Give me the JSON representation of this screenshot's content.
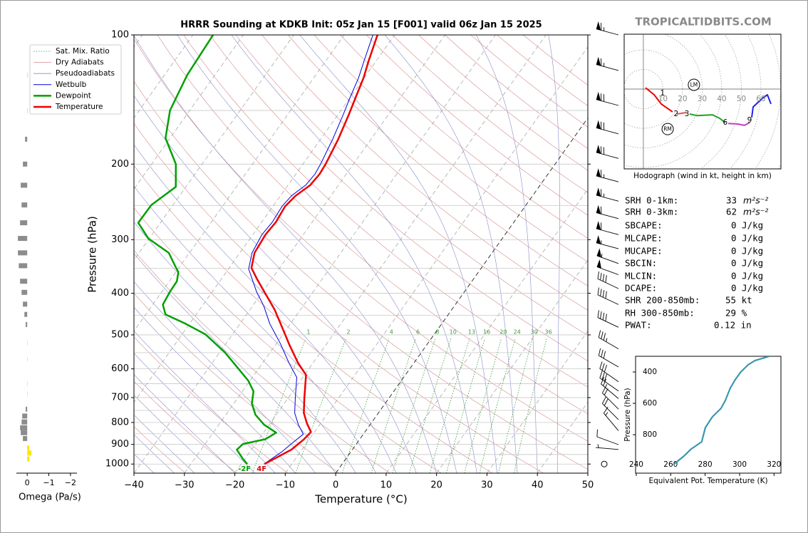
{
  "chart_data": [
    {
      "type": "skewt",
      "title": "HRRR Sounding at KDKB Init: 05z Jan 15 [F001] valid 06z Jan 15 2025",
      "xlabel": "Temperature (°C)",
      "ylabel": "Pressure (hPa)",
      "xlim": [
        -40,
        50
      ],
      "xticks": [
        {
          "value": -40,
          "label": "−40"
        },
        {
          "value": -30,
          "label": "−30"
        },
        {
          "value": -20,
          "label": "−20"
        },
        {
          "value": -10,
          "label": "−10"
        },
        0,
        10,
        20,
        30,
        40,
        50
      ],
      "ylim": [
        1050,
        100
      ],
      "yticks": [
        100,
        200,
        300,
        400,
        500,
        600,
        700,
        800,
        900,
        1000
      ],
      "log_y": true,
      "legend_position": "upper left",
      "background": [
        {
          "name": "Sat. Mix. Ratio",
          "color": "#3c9c3c",
          "values": [
            1,
            2,
            4,
            6,
            8,
            10,
            13,
            16,
            20,
            24,
            30,
            36
          ]
        },
        {
          "name": "Dry Adiabats",
          "color": "#d48a8a"
        },
        {
          "name": "Pseudoadiabats",
          "color": "#8a8ac8"
        }
      ],
      "series": [
        {
          "name": "Wetbulb",
          "color": "#0000dd",
          "line_width": 1,
          "pressure": [
            1000,
            937,
            892,
            852,
            810,
            760,
            704,
            628,
            581,
            524,
            471,
            428,
            397,
            351,
            322,
            292,
            273,
            251,
            237,
            224,
            211,
            200,
            175,
            153,
            139,
            126,
            115,
            100
          ],
          "values": [
            -15.5,
            -13.7,
            -12.8,
            -11.9,
            -14.2,
            -16.6,
            -18.5,
            -21.2,
            -24.8,
            -29.2,
            -34.1,
            -37.8,
            -41.2,
            -46.0,
            -47.6,
            -48.2,
            -47.9,
            -48.2,
            -47.8,
            -46.5,
            -46.2,
            -46.5,
            -47.6,
            -49.0,
            -50.1,
            -51.1,
            -52.4,
            -54.3
          ]
        },
        {
          "name": "Dewpoint",
          "color": "#00a000",
          "line_width": 2.5,
          "surface_label": "-2F",
          "pressure": [
            1000,
            973,
            926,
            898,
            875,
            845,
            810,
            768,
            723,
            677,
            640,
            588,
            549,
            499,
            471,
            448,
            425,
            397,
            375,
            357,
            347,
            322,
            298,
            274,
            249,
            226,
            200,
            174,
            150,
            124,
            100
          ],
          "values": [
            -18.8,
            -20.4,
            -22.9,
            -22.5,
            -18.7,
            -17.5,
            -21.0,
            -24.1,
            -26.4,
            -27.8,
            -30.3,
            -35.1,
            -39.0,
            -45.3,
            -50.8,
            -56.1,
            -58.0,
            -58.4,
            -58.5,
            -59.5,
            -60.8,
            -64.1,
            -70.2,
            -74.4,
            -74.3,
            -72.0,
            -75.2,
            -80.9,
            -83.9,
            -85.5,
            -86.0
          ]
        },
        {
          "name": "Temperature",
          "color": "#ee0000",
          "line_width": 2.5,
          "surface_label": "4F",
          "pressure": [
            1000,
            926,
            878,
            842,
            804,
            760,
            704,
            620,
            581,
            528,
            490,
            437,
            400,
            370,
            349,
            322,
            292,
            273,
            251,
            237,
            224,
            211,
            200,
            175,
            153,
            139,
            126,
            115,
            100
          ],
          "values": [
            -15.4,
            -12.1,
            -11.1,
            -10.7,
            -12.7,
            -14.8,
            -16.7,
            -19.7,
            -23.0,
            -27.2,
            -30.3,
            -35.1,
            -39.3,
            -43.0,
            -45.6,
            -47.1,
            -47.5,
            -47.2,
            -47.6,
            -47.0,
            -45.6,
            -45.3,
            -45.5,
            -46.5,
            -47.9,
            -49.0,
            -50.1,
            -51.5,
            -53.4
          ]
        }
      ],
      "winds": {
        "pressure": [
          100,
          121,
          146,
          170,
          194,
          220,
          244,
          268,
          292,
          315,
          341,
          362,
          390,
          425,
          480,
          539,
          594,
          643,
          676,
          704,
          745,
          788,
          836,
          901,
          925,
          1000
        ],
        "speed": [
          65,
          65,
          70,
          70,
          70,
          65,
          65,
          60,
          60,
          55,
          55,
          50,
          40,
          40,
          40,
          35,
          30,
          30,
          30,
          25,
          20,
          20,
          15,
          10,
          5,
          0
        ],
        "direction": [
          285,
          285,
          285,
          285,
          285,
          285,
          285,
          285,
          285,
          285,
          290,
          290,
          295,
          295,
          295,
          300,
          300,
          305,
          305,
          310,
          315,
          315,
          320,
          290,
          275,
          0
        ]
      }
    },
    {
      "type": "hbar",
      "xlabel": "Omega (Pa/s)",
      "xlim": [
        0.5,
        -2.3
      ],
      "xticks": [
        0,
        {
          "value": -1,
          "label": "−1"
        },
        {
          "value": -2,
          "label": "−2"
        }
      ],
      "ylim": [
        1050,
        100
      ],
      "log_y": true,
      "pos_color": "#8c8c8c",
      "neg_color": "#ffe600",
      "pressure": [
        124,
        150,
        175,
        200,
        224,
        249,
        274,
        298,
        322,
        345,
        375,
        398,
        424,
        448,
        473,
        523,
        570,
        650,
        687,
        745,
        773,
        798,
        823,
        845,
        872,
        918,
        943,
        973
      ],
      "values": [
        -0.03,
        -0.03,
        0.1,
        0.2,
        0.3,
        0.26,
        0.33,
        0.43,
        0.43,
        0.39,
        0.33,
        0.26,
        0.2,
        0.13,
        0.07,
        -0.02,
        -0.02,
        -0.02,
        -0.02,
        0.07,
        0.23,
        0.26,
        0.33,
        0.3,
        0.2,
        -0.1,
        -0.2,
        -0.1
      ]
    },
    {
      "type": "hodograph",
      "caption": "Hodograph (wind in kt, height in km)",
      "xlim": [
        -9.8,
        70.2
      ],
      "ylim": [
        -40.7,
        28
      ],
      "rings": [
        10,
        20,
        30,
        40,
        50,
        60
      ],
      "segments": [
        {
          "color": "#ee0000",
          "u": [
            1.1,
            5.5,
            9.1,
            14.9
          ],
          "v": [
            0.7,
            -2.9,
            -7.6,
            -11.6
          ]
        },
        {
          "color": "#e85050",
          "u": [
            17.1,
            21.8
          ],
          "v": [
            -12.7,
            -12.0
          ]
        },
        {
          "color": "#22a022",
          "u": [
            23.6,
            27.3,
            35.3,
            38.9,
            41.8
          ],
          "v": [
            -12.7,
            -13.5,
            -13.1,
            -14.9,
            -17.1
          ]
        },
        {
          "color": "#c040c0",
          "u": [
            43.3,
            48.0,
            51.6,
            54.2
          ],
          "v": [
            -17.5,
            -17.8,
            -18.5,
            -17.1
          ]
        },
        {
          "color": "#2222ee",
          "u": [
            55.3,
            56.0,
            60.7,
            63.3,
            65.1
          ],
          "v": [
            -14.5,
            -9.1,
            -4.7,
            -2.9,
            -7.6
          ]
        }
      ],
      "height_labels": [
        {
          "label": "1",
          "u": 9.8,
          "v": -2.2
        },
        {
          "label": "2",
          "u": 16.7,
          "v": -12.7
        },
        {
          "label": "3",
          "u": 22.2,
          "v": -12.7
        },
        {
          "label": "6",
          "u": 41.8,
          "v": -17.1
        },
        {
          "label": "9",
          "u": 54.2,
          "v": -16.0
        }
      ],
      "storm_motion": [
        {
          "label": "LM",
          "u": 25.8,
          "v": 2.2
        },
        {
          "label": "RM",
          "u": 12.4,
          "v": -20.4
        }
      ]
    },
    {
      "type": "profile",
      "xlabel": "Equivalent Pot. Temperature (K)",
      "ylabel": "Pressure (hPa)",
      "xlim": [
        239.6,
        324
      ],
      "xticks": [
        240,
        260,
        280,
        300,
        320
      ],
      "ylim": [
        1045,
        300
      ],
      "yticks": [
        400,
        600,
        800
      ],
      "color": "#3a97ae",
      "pressure": [
        991,
        936,
        891,
        845,
        755,
        686,
        632,
        582,
        505,
        450,
        400,
        355,
        327,
        300
      ],
      "values": [
        261.5,
        267.7,
        271.9,
        278.0,
        280.1,
        284.2,
        289.2,
        291.7,
        294.5,
        297.4,
        300.7,
        304.9,
        309.0,
        317.3
      ]
    }
  ],
  "watermark": "TROPICALTIDBITS.COM",
  "indices": [
    {
      "label": "SRH 0-1km:",
      "value": "33",
      "unit": "m²s⁻²",
      "color": "#000000"
    },
    {
      "label": "SRH 0-3km:",
      "value": "62",
      "unit": "m²s⁻²",
      "color": "#000000"
    },
    {
      "label": "SBCAPE:",
      "value": "0 J/kg",
      "color": "#000000"
    },
    {
      "label": "MLCAPE:",
      "value": "0 J/kg",
      "color": "#000000"
    },
    {
      "label": "MUCAPE:",
      "value": "0 J/kg",
      "color": "#000000"
    },
    {
      "label": "SBCIN:",
      "value": "0 J/kg",
      "color": "#000000"
    },
    {
      "label": "MLCIN:",
      "value": "0 J/kg",
      "color": "#000000"
    },
    {
      "label": "DCAPE:",
      "value": "0 J/kg",
      "color": "#000000"
    },
    {
      "label": "SHR 200-850mb:",
      "value": "55 kt",
      "color": "#a01818"
    },
    {
      "label": "RH 300-850mb:",
      "value": "29 %",
      "color": "#8a5a00"
    },
    {
      "label": "PWAT:",
      "value": "0.12 in",
      "color": "#000000"
    }
  ]
}
